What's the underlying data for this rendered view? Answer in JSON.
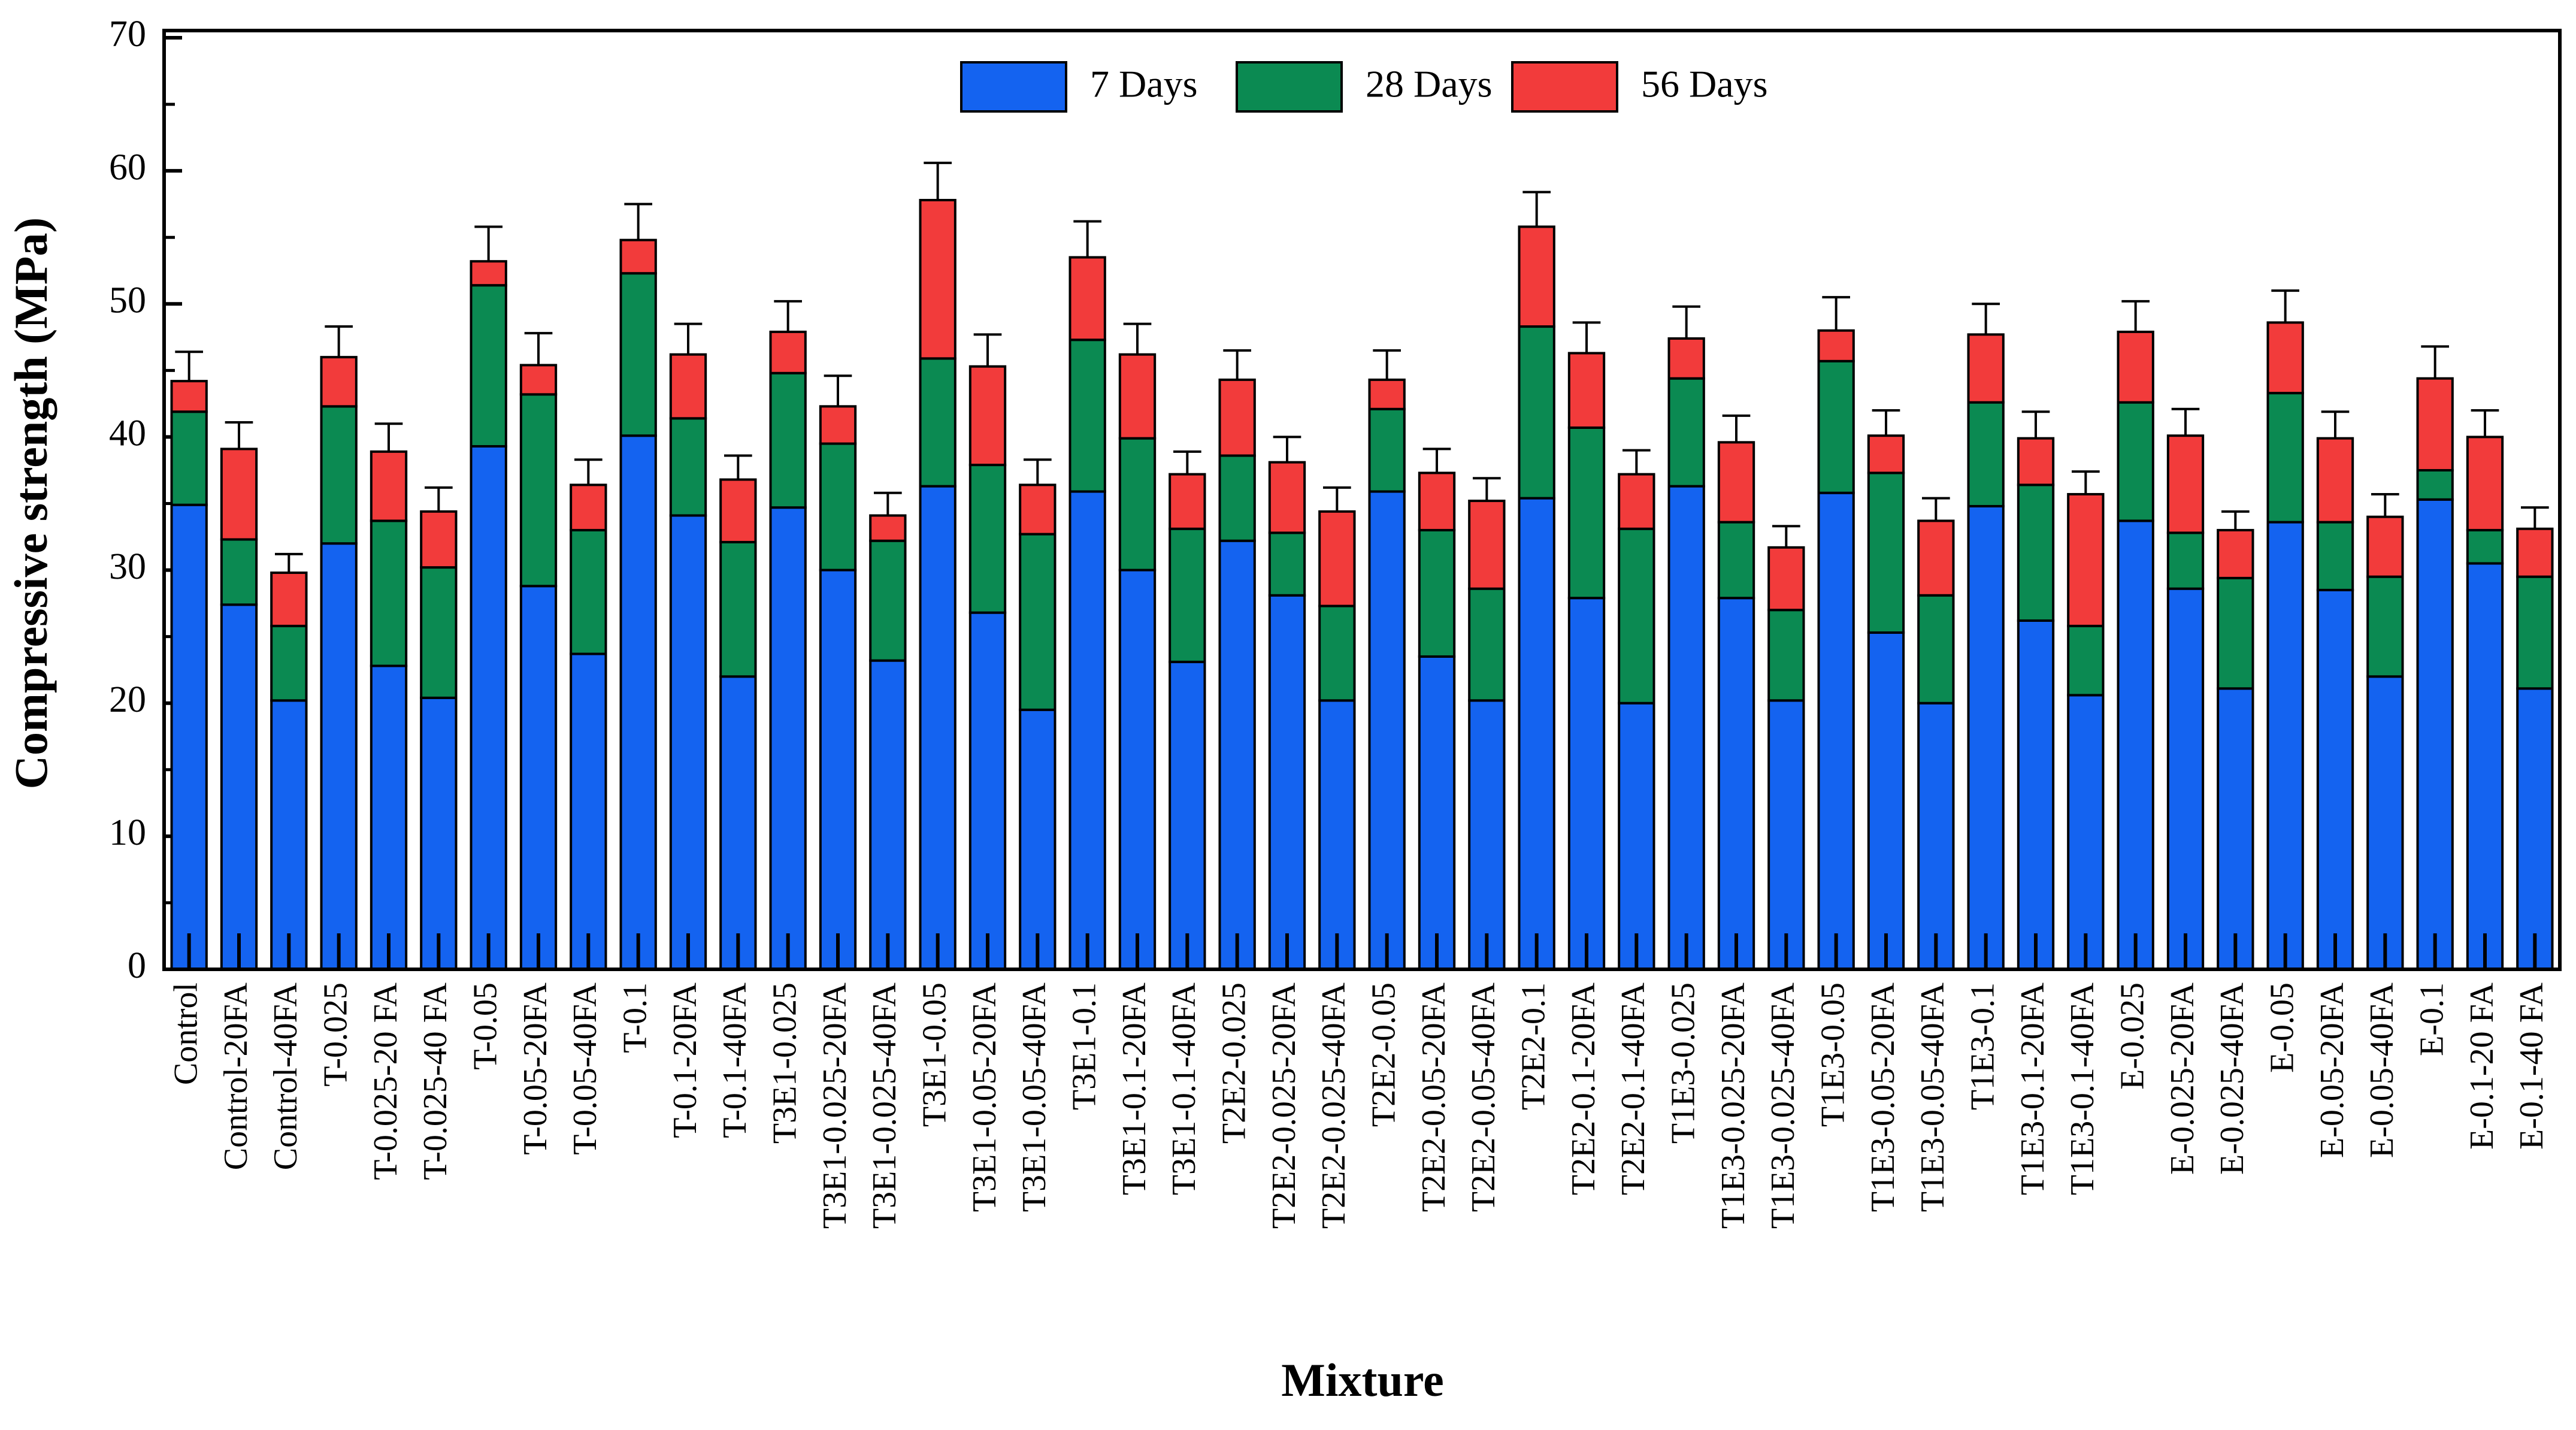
{
  "chart_data": {
    "type": "stacked_bar",
    "xlabel": "Mixture",
    "ylabel": "Compressive strength (MPa)",
    "categories": [
      "Control",
      "Control-20FA",
      "Control-40FA",
      "T-0.025",
      "T-0.025-20 FA",
      "T-0.025-40 FA",
      "T-0.05",
      "T-0.05-20FA",
      "T-0.05-40FA",
      "T-0.1",
      "T-0.1-20FA",
      "T-0.1-40FA",
      "T3E1-0.025",
      "T3E1-0.025-20FA",
      "T3E1-0.025-40FA",
      "T3E1-0.05",
      "T3E1-0.05-20FA",
      "T3E1-0.05-40FA",
      "T3E1-0.1",
      "T3E1-0.1-20FA",
      "T3E1-0.1-40FA",
      "T2E2-0.025",
      "T2E2-0.025-20FA",
      "T2E2-0.025-40FA",
      "T2E2-0.05",
      "T2E2-0.05-20FA",
      "T2E2-0.05-40FA",
      "T2E2-0.1",
      "T2E2-0.1-20FA",
      "T2E2-0.1-40FA",
      "T1E3-0.025",
      "T1E3-0.025-20FA",
      "T1E3-0.025-40FA",
      "T1E3-0.05",
      "T1E3-0.05-20FA",
      "T1E3-0.05-40FA",
      "T1E3-0.1",
      "T1E3-0.1-20FA",
      "T1E3-0.1-40FA",
      "E-0.025",
      "E-0.025-20FA",
      "E-0.025-40FA",
      "E-0.05",
      "E-0.05-20FA",
      "E-0.05-40FA",
      "E-0.1",
      "E-0.1-20 FA",
      "E-0.1-40 FA"
    ],
    "series": [
      {
        "name": "7 Days",
        "color": "#1463f0",
        "values": [
          34.9,
          27.4,
          20.2,
          32.0,
          22.8,
          20.4,
          39.3,
          28.8,
          23.7,
          40.1,
          34.1,
          22.0,
          34.7,
          30.0,
          23.2,
          36.3,
          26.8,
          19.5,
          35.9,
          30.0,
          23.1,
          32.2,
          28.1,
          20.2,
          35.9,
          23.5,
          20.2,
          35.4,
          27.9,
          20.0,
          36.3,
          27.9,
          20.2,
          35.8,
          25.3,
          20.0,
          34.8,
          26.2,
          20.6,
          33.7,
          28.6,
          21.1,
          33.6,
          28.5,
          22.0,
          35.3,
          30.5,
          21.1
        ]
      },
      {
        "name": "28 Days",
        "color": "#0b8a52",
        "values": [
          7.0,
          4.9,
          5.6,
          10.3,
          10.9,
          9.8,
          12.1,
          14.4,
          9.3,
          12.2,
          7.3,
          10.1,
          10.1,
          9.5,
          9.0,
          9.6,
          11.1,
          13.2,
          11.4,
          9.9,
          10.0,
          6.4,
          4.7,
          7.1,
          6.2,
          9.5,
          8.4,
          12.9,
          12.8,
          13.1,
          8.1,
          5.7,
          6.8,
          9.9,
          12.0,
          8.1,
          7.8,
          10.2,
          5.2,
          8.9,
          4.2,
          8.3,
          9.7,
          5.1,
          7.5,
          2.2,
          2.5,
          8.4
        ]
      },
      {
        "name": "56 Days",
        "color": "#f23b3b",
        "values": [
          2.3,
          6.8,
          4.0,
          3.7,
          5.2,
          4.2,
          1.8,
          2.2,
          3.4,
          2.5,
          4.8,
          4.7,
          3.1,
          2.8,
          1.9,
          11.9,
          7.4,
          3.7,
          6.2,
          6.3,
          4.1,
          5.7,
          5.3,
          7.1,
          2.2,
          4.3,
          6.6,
          7.5,
          5.6,
          4.1,
          3.0,
          6.0,
          4.7,
          2.3,
          2.8,
          5.6,
          5.1,
          3.5,
          9.9,
          5.3,
          7.3,
          3.6,
          5.3,
          6.3,
          4.5,
          6.9,
          7.0,
          3.6
        ],
        "errors": [
          2.2,
          2.0,
          1.4,
          2.3,
          2.1,
          1.8,
          2.6,
          2.4,
          1.9,
          2.7,
          2.3,
          1.8,
          2.3,
          2.3,
          1.7,
          2.8,
          2.4,
          1.9,
          2.7,
          2.3,
          1.7,
          2.2,
          1.9,
          1.8,
          2.2,
          1.8,
          1.7,
          2.6,
          2.3,
          1.8,
          2.4,
          2.0,
          1.6,
          2.5,
          1.9,
          1.7,
          2.3,
          2.0,
          1.7,
          2.3,
          2.0,
          1.4,
          2.4,
          2.0,
          1.7,
          2.4,
          2.0,
          1.6
        ]
      }
    ],
    "ylim": [
      0,
      70
    ],
    "yticks": [
      0,
      10,
      20,
      30,
      40,
      50,
      60,
      70
    ],
    "legend": "top"
  }
}
